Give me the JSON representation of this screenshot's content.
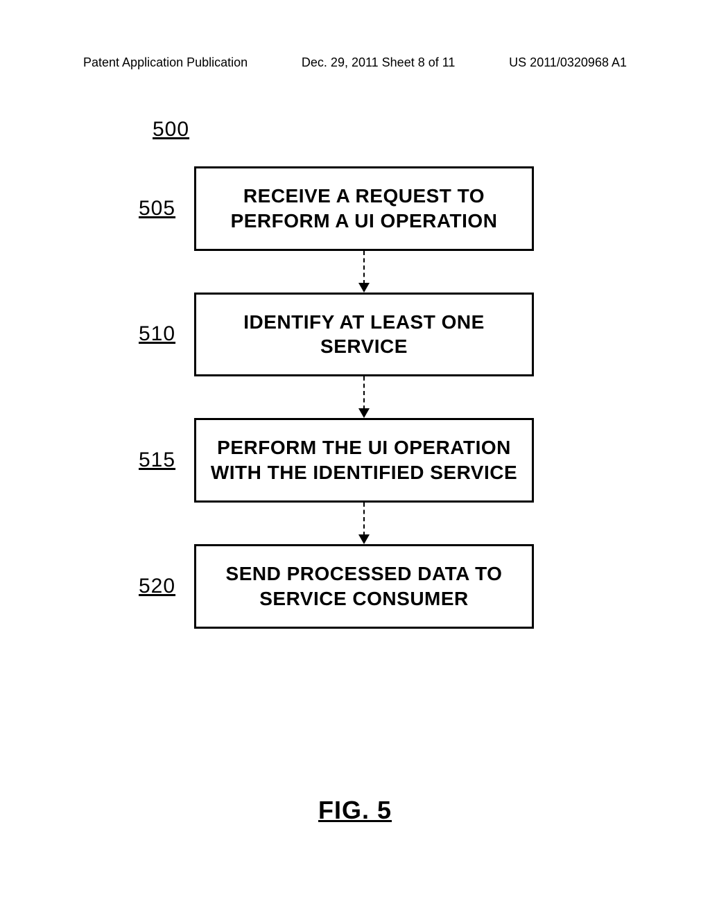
{
  "header": {
    "left": "Patent Application Publication",
    "center": "Dec. 29, 2011  Sheet 8 of 11",
    "right": "US 2011/0320968 A1"
  },
  "diagram": {
    "type": "flowchart",
    "figure_ref": "500",
    "figure_title": "FIG. 5",
    "box_border_color": "#000000",
    "box_border_width": 3,
    "text_color": "#000000",
    "background_color": "#ffffff",
    "label_fontsize": 30,
    "box_fontsize": 28,
    "title_fontsize": 36,
    "arrow_style": "dashed",
    "steps": [
      {
        "ref": "505",
        "text": "RECEIVE A REQUEST TO PERFORM A UI OPERATION"
      },
      {
        "ref": "510",
        "text": "IDENTIFY AT LEAST ONE SERVICE"
      },
      {
        "ref": "515",
        "text": "PERFORM THE UI OPERATION WITH THE IDENTIFIED SERVICE"
      },
      {
        "ref": "520",
        "text": "SEND PROCESSED DATA TO SERVICE CONSUMER"
      }
    ]
  }
}
